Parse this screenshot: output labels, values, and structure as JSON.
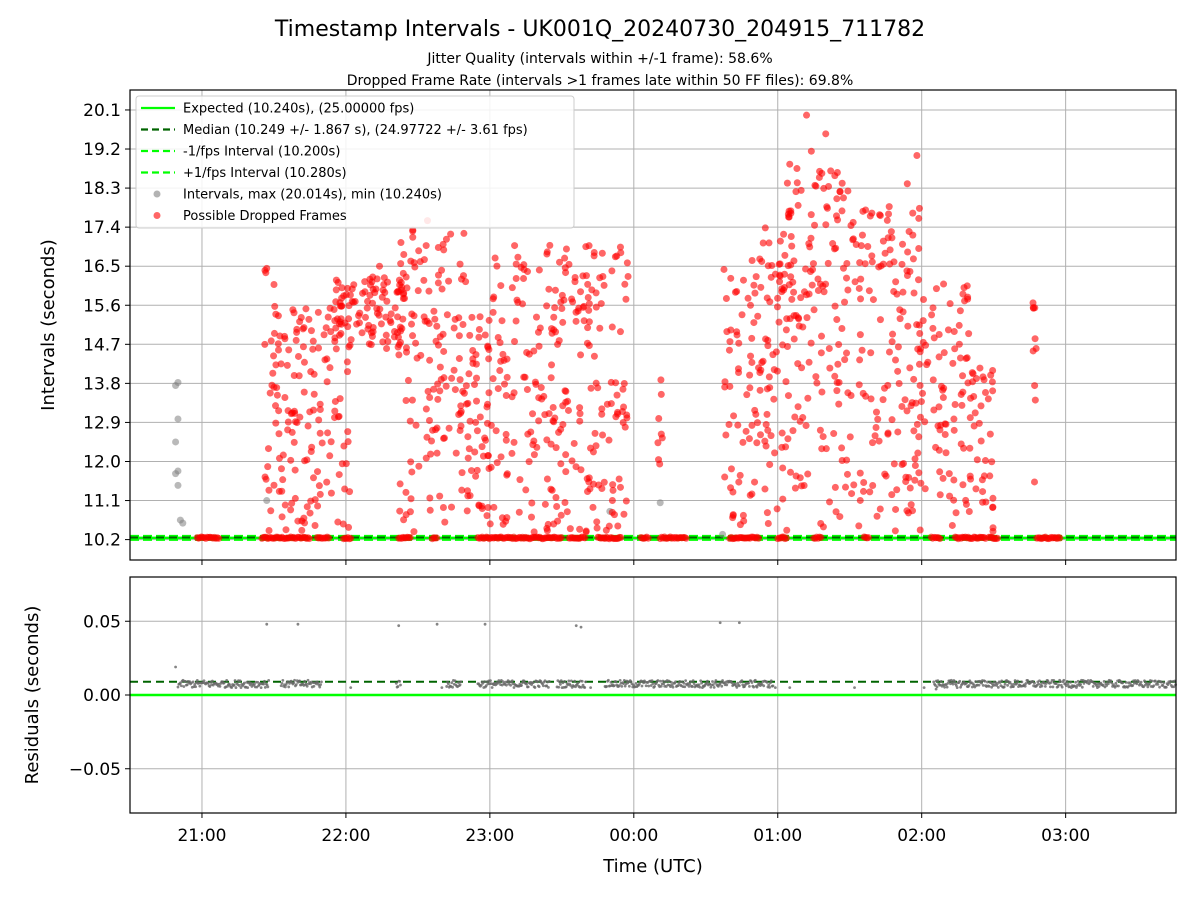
{
  "title": "Timestamp Intervals - UK001Q_20240730_204915_711782",
  "subtitle_line1": "Jitter Quality (intervals within +/-1 frame): 58.6%",
  "subtitle_line2": "Dropped Frame Rate (intervals >1 frames late within 50 FF files): 69.8%",
  "colors": {
    "expected": "#00ff00",
    "median": "#006400",
    "interval": "#808080",
    "dropped": "#ff0000",
    "grid": "#b0b0b0"
  },
  "chart_data": [
    {
      "type": "scatter",
      "ylabel": "Intervals (seconds)",
      "yticks": [
        "10.2",
        "11.1",
        "12.0",
        "12.9",
        "13.8",
        "14.7",
        "15.6",
        "16.5",
        "17.4",
        "18.3",
        "19.2",
        "20.1"
      ],
      "ylim": [
        9.73,
        20.56
      ],
      "xlim": [
        "20:30",
        "03:46"
      ],
      "grid": true,
      "legend_position": "upper-left",
      "legend": [
        {
          "label": "Expected (10.240s), (25.00000 fps)",
          "style": "solid",
          "color": "#00ff00"
        },
        {
          "label": "Median (10.249 +/- 1.867 s), (24.97722 +/- 3.61 fps)",
          "style": "dashed",
          "color": "#006400"
        },
        {
          "label": "-1/fps Interval (10.200s)",
          "style": "dashed",
          "color": "#00ff00"
        },
        {
          "label": "+1/fps Interval (10.280s)",
          "style": "dashed",
          "color": "#00ff00"
        },
        {
          "label": "Intervals, max (20.014s), min (10.240s)",
          "style": "marker",
          "color": "#808080"
        },
        {
          "label": "Possible Dropped Frames",
          "style": "marker",
          "color": "#ff0000"
        }
      ],
      "expected": 10.24,
      "median": 10.249,
      "lower_bound": 10.2,
      "upper_bound": 10.28,
      "gray_points": [
        [
          "20:49",
          13.75
        ],
        [
          "20:50",
          13.82
        ],
        [
          "20:50",
          12.98
        ],
        [
          "20:49",
          12.45
        ],
        [
          "20:50",
          11.78
        ],
        [
          "20:49",
          11.72
        ],
        [
          "20:50",
          11.45
        ],
        [
          "20:51",
          10.65
        ],
        [
          "20:52",
          10.58
        ],
        [
          "21:27",
          11.1
        ],
        [
          "23:50",
          10.85
        ],
        [
          "00:11",
          11.05
        ],
        [
          "00:37",
          10.32
        ]
      ],
      "dropped_clusters": [
        {
          "t0": "21:26",
          "t1": "21:32",
          "n": 30,
          "ymax": 16.45
        },
        {
          "t0": "21:32",
          "t1": "21:50",
          "n": 85,
          "ymax": 15.6
        },
        {
          "t0": "21:50",
          "t1": "22:02",
          "n": 45,
          "ymax": 16.0
        },
        {
          "t0": "21:55",
          "t1": "22:25",
          "n": 95,
          "ymax": 16.3,
          "ymin": 14.6
        },
        {
          "t0": "22:22",
          "t1": "22:50",
          "n": 130,
          "ymax": 17.5
        },
        {
          "t0": "22:50",
          "t1": "23:00",
          "n": 55,
          "ymax": 15.5
        },
        {
          "t0": "23:00",
          "t1": "23:38",
          "n": 165,
          "ymax": 17.0
        },
        {
          "t0": "23:38",
          "t1": "23:58",
          "n": 90,
          "ymax": 17.0
        },
        {
          "t0": "00:10",
          "t1": "00:12",
          "n": 8,
          "ymax": 14.1
        },
        {
          "t0": "00:37",
          "t1": "00:49",
          "n": 45,
          "ymax": 16.5
        },
        {
          "t0": "00:49",
          "t1": "01:02",
          "n": 70,
          "ymax": 17.4
        },
        {
          "t0": "01:02",
          "t1": "01:32",
          "n": 160,
          "ymax": 18.7
        },
        {
          "t0": "01:32",
          "t1": "02:00",
          "n": 140,
          "ymax": 17.9
        },
        {
          "t0": "02:00",
          "t1": "02:20",
          "n": 75,
          "ymax": 16.2
        },
        {
          "t0": "02:20",
          "t1": "02:30",
          "n": 40,
          "ymax": 14.3
        },
        {
          "t0": "02:46",
          "t1": "02:48",
          "n": 10,
          "ymax": 15.7
        }
      ],
      "dropped_outliers": [
        [
          "01:12",
          19.98
        ],
        [
          "01:20",
          19.55
        ],
        [
          "01:58",
          19.05
        ],
        [
          "01:05",
          18.85
        ],
        [
          "01:08",
          18.75
        ],
        [
          "01:14",
          19.15
        ],
        [
          "01:54",
          18.4
        ],
        [
          "22:34",
          17.55
        ],
        [
          "23:25",
          16.98
        ],
        [
          "23:40",
          16.95
        ],
        [
          "22:10",
          16.2
        ],
        [
          "22:14",
          16.5
        ],
        [
          "21:27",
          16.45
        ]
      ],
      "dropped_baseline": [
        [
          "20:58",
          "21:07"
        ],
        [
          "21:25",
          "21:45"
        ],
        [
          "21:48",
          "21:53"
        ],
        [
          "21:59",
          "22:02"
        ],
        [
          "22:22",
          "22:27"
        ],
        [
          "22:36",
          "22:38"
        ],
        [
          "22:55",
          "23:30"
        ],
        [
          "23:33",
          "23:40"
        ],
        [
          "23:45",
          "23:55"
        ],
        [
          "00:03",
          "00:06"
        ],
        [
          "00:11",
          "00:22"
        ],
        [
          "00:40",
          "00:52"
        ],
        [
          "01:00",
          "01:04"
        ],
        [
          "01:15",
          "01:18"
        ],
        [
          "01:36",
          "01:38"
        ],
        [
          "02:04",
          "02:08"
        ],
        [
          "02:14",
          "02:27"
        ],
        [
          "02:28",
          "02:32"
        ],
        [
          "02:48",
          "02:58"
        ]
      ]
    },
    {
      "type": "scatter",
      "ylabel": "Residuals (seconds)",
      "yticks": [
        "−0.05",
        "0.00",
        "0.05"
      ],
      "ylim": [
        -0.08,
        0.08
      ],
      "xlabel": "Time (UTC)",
      "xticks": [
        "21:00",
        "22:00",
        "23:00",
        "00:00",
        "01:00",
        "02:00",
        "03:00"
      ],
      "xlim": [
        "20:30",
        "03:46"
      ],
      "grid": true,
      "expected_residual": 0.0,
      "median_residual": 0.009,
      "residual_bands": [
        [
          "20:50",
          "21:28"
        ],
        [
          "21:33",
          "21:50"
        ],
        [
          "22:21",
          "22:23"
        ],
        [
          "22:42",
          "22:48"
        ],
        [
          "22:55",
          "23:25"
        ],
        [
          "23:28",
          "23:40"
        ],
        [
          "23:48",
          "00:58"
        ],
        [
          "02:05",
          "03:46"
        ]
      ],
      "residual_outliers": [
        [
          "20:49",
          0.019
        ],
        [
          "21:27",
          0.048
        ],
        [
          "21:40",
          0.048
        ],
        [
          "22:22",
          0.047
        ],
        [
          "22:38",
          0.048
        ],
        [
          "22:58",
          0.048
        ],
        [
          "23:36",
          0.047
        ],
        [
          "23:38",
          0.046
        ],
        [
          "00:36",
          0.049
        ],
        [
          "00:44",
          0.049
        ],
        [
          "22:02",
          0.005
        ],
        [
          "23:42",
          0.005
        ],
        [
          "00:59",
          0.005
        ],
        [
          "01:05",
          0.005
        ],
        [
          "01:32",
          0.005
        ],
        [
          "02:01",
          0.005
        ],
        [
          "02:06",
          0.004
        ],
        [
          "22:40",
          0.005
        ]
      ]
    }
  ]
}
